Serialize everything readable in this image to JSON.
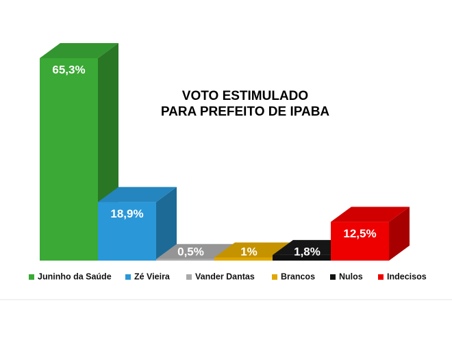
{
  "chart_data": {
    "type": "bar",
    "title": [
      "VOTO ESTIMULADO",
      "PARA PREFEITO DE IPABA"
    ],
    "categories": [
      "Juninho da Saúde",
      "Zé Vieira",
      "Vander Dantas",
      "Brancos",
      "Nulos",
      "Indecisos"
    ],
    "values": [
      65.3,
      18.9,
      0.5,
      1,
      1.8,
      12.5
    ],
    "value_labels": [
      "65,3%",
      "18,9%",
      "0,5%",
      "1%",
      "1,8%",
      "12,5%"
    ],
    "colors": [
      "#3aa935",
      "#2a97d8",
      "#a9a9a9",
      "#e0a700",
      "#111111",
      "#ee0000"
    ]
  }
}
